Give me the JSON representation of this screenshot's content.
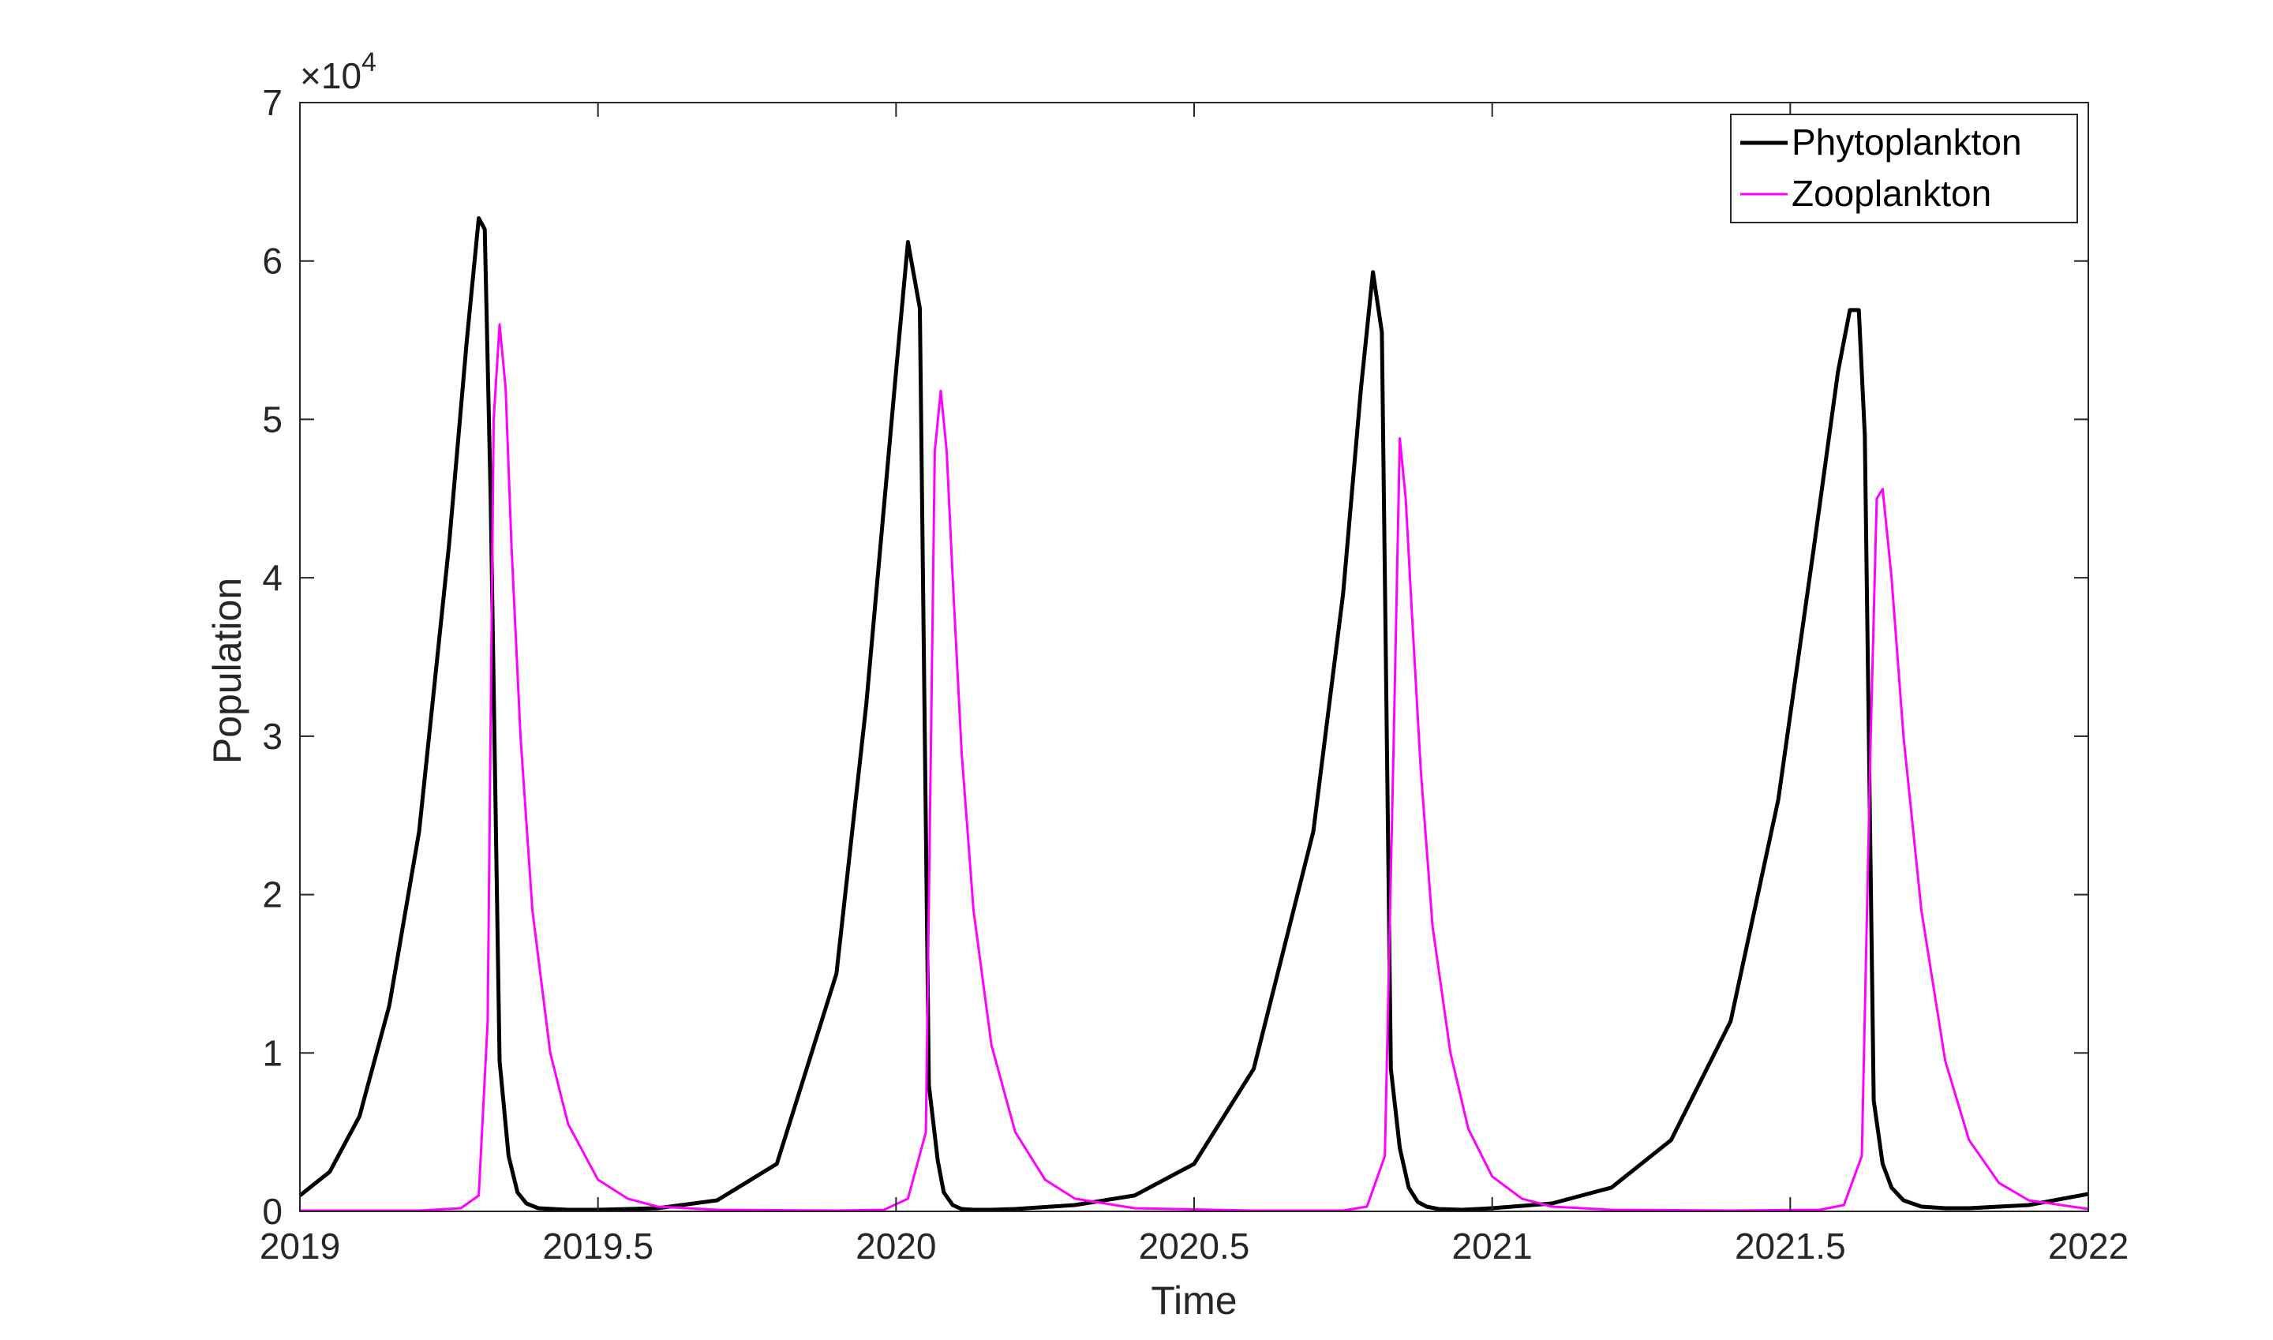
{
  "chart_data": {
    "type": "line",
    "title": "",
    "xlabel": "Time",
    "ylabel": "Population",
    "xlim": [
      2019,
      2022
    ],
    "ylim": [
      0,
      70000
    ],
    "x_ticks": [
      2019,
      2019.5,
      2020,
      2020.5,
      2021,
      2021.5,
      2022
    ],
    "x_tick_labels": [
      "2019",
      "2019.5",
      "2020",
      "2020.5",
      "2021",
      "2021.5",
      "2022"
    ],
    "y_ticks": [
      0,
      10000,
      20000,
      30000,
      40000,
      50000,
      60000,
      70000
    ],
    "y_tick_labels": [
      "0",
      "1",
      "2",
      "3",
      "4",
      "5",
      "6",
      "7"
    ],
    "y_exponent_label": "×10",
    "y_exponent_power": "4",
    "grid": false,
    "legend_position": "top-right",
    "series": [
      {
        "name": "Phytoplankton",
        "color": "#000000",
        "x": [
          2019.0,
          2019.05,
          2019.1,
          2019.15,
          2019.2,
          2019.25,
          2019.28,
          2019.3,
          2019.31,
          2019.32,
          2019.335,
          2019.35,
          2019.365,
          2019.38,
          2019.4,
          2019.45,
          2019.5,
          2019.6,
          2019.7,
          2019.8,
          2019.9,
          2019.95,
          2020.0,
          2020.02,
          2020.04,
          2020.055,
          2020.07,
          2020.08,
          2020.095,
          2020.11,
          2020.13,
          2020.16,
          2020.2,
          2020.3,
          2020.4,
          2020.5,
          2020.6,
          2020.7,
          2020.75,
          2020.78,
          2020.8,
          2020.815,
          2020.83,
          2020.845,
          2020.86,
          2020.875,
          2020.89,
          2020.91,
          2020.95,
          2021.0,
          2021.1,
          2021.2,
          2021.3,
          2021.4,
          2021.48,
          2021.54,
          2021.58,
          2021.6,
          2021.615,
          2021.625,
          2021.64,
          2021.655,
          2021.67,
          2021.69,
          2021.72,
          2021.76,
          2021.8,
          2021.9,
          2022.0
        ],
        "y": [
          1000,
          2500,
          6000,
          13000,
          24000,
          42000,
          55000,
          62700,
          62000,
          45000,
          9500,
          3500,
          1200,
          500,
          200,
          100,
          100,
          200,
          700,
          3000,
          15000,
          32000,
          53000,
          61200,
          57000,
          8000,
          3200,
          1200,
          400,
          150,
          100,
          100,
          150,
          400,
          1000,
          3000,
          9000,
          24000,
          39000,
          52000,
          59300,
          55500,
          9000,
          4000,
          1500,
          600,
          300,
          150,
          100,
          200,
          500,
          1500,
          4500,
          12000,
          26000,
          42000,
          53000,
          56900,
          56900,
          49000,
          7000,
          3000,
          1500,
          700,
          300,
          200,
          200,
          400,
          1100
        ]
      },
      {
        "name": "Zooplankton",
        "color": "#ff00ff",
        "x": [
          2019.0,
          2019.2,
          2019.27,
          2019.3,
          2019.315,
          2019.325,
          2019.335,
          2019.345,
          2019.355,
          2019.37,
          2019.39,
          2019.42,
          2019.45,
          2019.5,
          2019.55,
          2019.6,
          2019.7,
          2019.9,
          2019.98,
          2020.02,
          2020.05,
          2020.065,
          2020.075,
          2020.085,
          2020.095,
          2020.11,
          2020.13,
          2020.16,
          2020.2,
          2020.25,
          2020.3,
          2020.4,
          2020.6,
          2020.75,
          2020.79,
          2020.82,
          2020.835,
          2020.845,
          2020.855,
          2020.865,
          2020.88,
          2020.9,
          2020.93,
          2020.96,
          2021.0,
          2021.05,
          2021.1,
          2021.2,
          2021.4,
          2021.55,
          2021.59,
          2021.62,
          2021.635,
          2021.645,
          2021.655,
          2021.67,
          2021.69,
          2021.72,
          2021.76,
          2021.8,
          2021.85,
          2021.9,
          2022.0
        ],
        "y": [
          50,
          50,
          200,
          1000,
          12000,
          50000,
          56000,
          52000,
          42000,
          30000,
          19000,
          10000,
          5500,
          2000,
          800,
          300,
          100,
          50,
          100,
          800,
          5000,
          48000,
          51800,
          48000,
          40000,
          29000,
          19000,
          10500,
          5000,
          2000,
          800,
          200,
          50,
          50,
          300,
          3500,
          30000,
          48800,
          45000,
          38000,
          28000,
          18000,
          10000,
          5200,
          2200,
          800,
          300,
          100,
          50,
          100,
          400,
          3500,
          30000,
          45000,
          45600,
          40000,
          30000,
          19000,
          9500,
          4500,
          1800,
          700,
          150
        ]
      }
    ]
  }
}
